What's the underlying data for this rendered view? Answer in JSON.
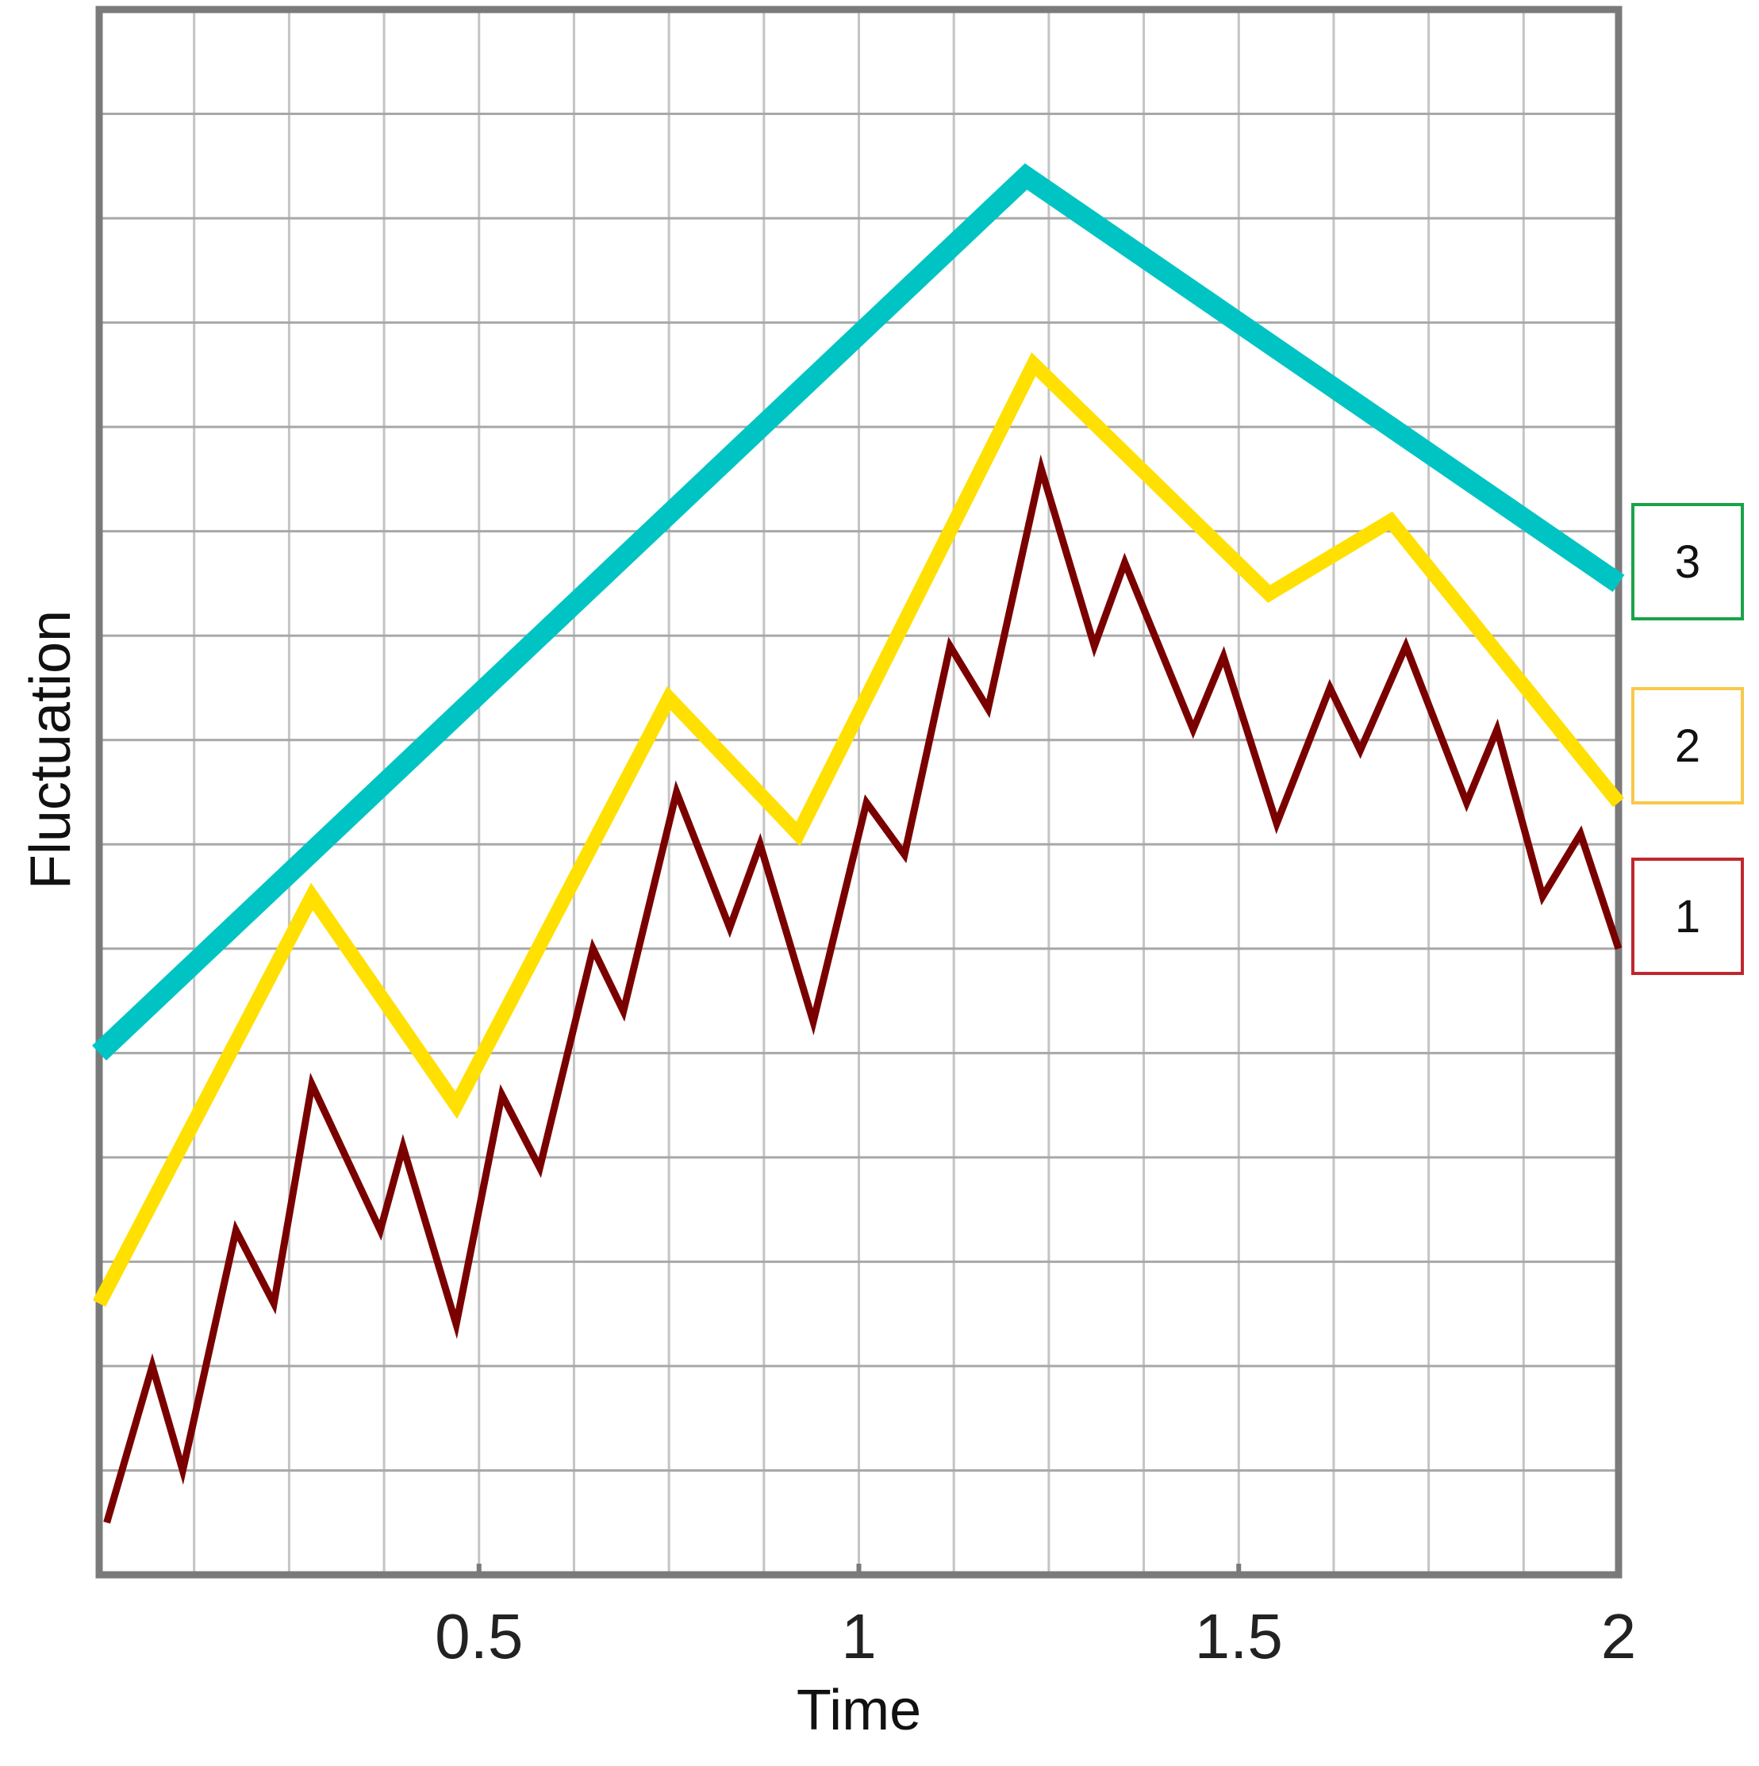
{
  "chart_data": {
    "type": "line",
    "xlabel": "Time",
    "ylabel": "Fluctuation",
    "xlim": [
      0,
      2
    ],
    "ylim": [
      0,
      15
    ],
    "x_ticks": [
      "0.5",
      "1",
      "1.5",
      "2"
    ],
    "x_tick_values": [
      0.5,
      1,
      1.5,
      2
    ],
    "y_grid_count": 15,
    "x_grid_step": 0.125,
    "grid": true,
    "legend_position": "right",
    "series": [
      {
        "label": "1",
        "color": "#7a0000",
        "legend_border": "#c0272d",
        "points": [
          [
            0.01,
            0.5
          ],
          [
            0.07,
            2
          ],
          [
            0.11,
            1
          ],
          [
            0.18,
            3.3
          ],
          [
            0.23,
            2.6
          ],
          [
            0.28,
            4.7
          ],
          [
            0.37,
            3.3
          ],
          [
            0.4,
            4.1
          ],
          [
            0.47,
            2.4
          ],
          [
            0.53,
            4.6
          ],
          [
            0.58,
            3.9
          ],
          [
            0.65,
            6
          ],
          [
            0.69,
            5.4
          ],
          [
            0.76,
            7.5
          ],
          [
            0.83,
            6.2
          ],
          [
            0.87,
            7
          ],
          [
            0.94,
            5.3
          ],
          [
            1.01,
            7.4
          ],
          [
            1.06,
            6.9
          ],
          [
            1.12,
            8.9
          ],
          [
            1.17,
            8.3
          ],
          [
            1.24,
            10.6
          ],
          [
            1.31,
            8.9
          ],
          [
            1.35,
            9.7
          ],
          [
            1.44,
            8.1
          ],
          [
            1.48,
            8.8
          ],
          [
            1.55,
            7.2
          ],
          [
            1.62,
            8.5
          ],
          [
            1.66,
            7.9
          ],
          [
            1.72,
            8.9
          ],
          [
            1.8,
            7.4
          ],
          [
            1.84,
            8.1
          ],
          [
            1.9,
            6.5
          ],
          [
            1.95,
            7.1
          ],
          [
            2,
            6
          ]
        ]
      },
      {
        "label": "2",
        "color": "#ffe000",
        "legend_border": "#f9c84a",
        "points": [
          [
            0,
            2.6
          ],
          [
            0.28,
            6.5
          ],
          [
            0.47,
            4.5
          ],
          [
            0.75,
            8.4
          ],
          [
            0.92,
            7.1
          ],
          [
            1.23,
            11.6
          ],
          [
            1.54,
            9.4
          ],
          [
            1.7,
            10.1
          ],
          [
            2,
            7.4
          ]
        ]
      },
      {
        "label": "3",
        "color": "#00c4c4",
        "legend_border": "#1aa34a",
        "points": [
          [
            0,
            5
          ],
          [
            1.22,
            13.4
          ],
          [
            2,
            9.5
          ]
        ]
      }
    ]
  }
}
